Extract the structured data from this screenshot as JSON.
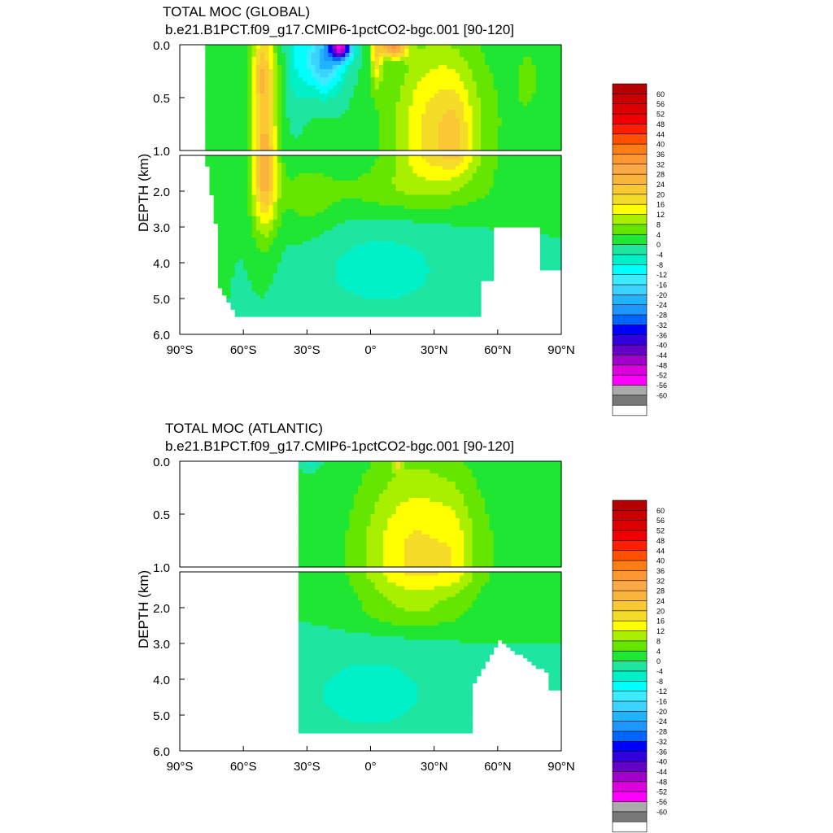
{
  "chart_data": [
    {
      "type": "contour",
      "title": "TOTAL MOC (GLOBAL)",
      "subtitle": "b.e21.B1PCT.f09_g17.CMIP6-1pctCO2-bgc.001 [90-120]",
      "ylabel": "DEPTH (km)",
      "xlabel": "",
      "xlim": [
        -90,
        90
      ],
      "ylim": [
        6.0,
        0.0
      ],
      "y_split_km": 1.0,
      "x_ticks": [
        "90°S",
        "60°S",
        "30°S",
        "0°",
        "30°N",
        "60°N",
        "90°N"
      ],
      "y_ticks_upper": [
        "0.0",
        "0.5",
        "1.0"
      ],
      "y_ticks_lower": [
        "2.0",
        "3.0",
        "4.0",
        "5.0",
        "6.0"
      ],
      "features": [
        {
          "name": "Southern Ocean overturning cell",
          "lat_center": -50,
          "depth_range_km": [
            0.0,
            3.2
          ],
          "peak_sv": 28,
          "sign": "positive"
        },
        {
          "name": "Tropical surface cell (south)",
          "lat_center": -13,
          "depth_range_km": [
            0.0,
            0.4
          ],
          "peak_sv": -44,
          "sign": "negative"
        },
        {
          "name": "Tropical surface cell (north)",
          "lat_center": 10,
          "depth_range_km": [
            0.0,
            0.2
          ],
          "peak_sv": 32,
          "sign": "positive"
        },
        {
          "name": "NH upper overturning cell",
          "lat_center": 40,
          "depth_range_km": [
            0.3,
            1.8
          ],
          "peak_sv": 20,
          "sign": "positive"
        },
        {
          "name": "Abyssal cell",
          "lat_center": 10,
          "depth_range_km": [
            3.0,
            5.5
          ],
          "peak_sv": -4,
          "sign": "negative"
        }
      ]
    },
    {
      "type": "contour",
      "title": "TOTAL MOC (ATLANTIC)",
      "subtitle": "b.e21.B1PCT.f09_g17.CMIP6-1pctCO2-bgc.001 [90-120]",
      "ylabel": "DEPTH (km)",
      "xlabel": "",
      "xlim": [
        -90,
        90
      ],
      "ylim": [
        6.0,
        0.0
      ],
      "y_split_km": 1.0,
      "x_ticks": [
        "90°S",
        "60°S",
        "30°S",
        "0°",
        "30°N",
        "60°N",
        "90°N"
      ],
      "y_ticks_upper": [
        "0.0",
        "0.5",
        "1.0"
      ],
      "y_ticks_lower": [
        "2.0",
        "3.0",
        "4.0",
        "5.0",
        "6.0"
      ],
      "features": [
        {
          "name": "AMOC upper cell",
          "lat_center": 20,
          "depth_range_km": [
            0.1,
            2.2
          ],
          "peak_sv": 20,
          "sign": "positive"
        },
        {
          "name": "Subtropical surface cell",
          "lat_center": -25,
          "depth_range_km": [
            0.0,
            0.05
          ],
          "peak_sv": -4,
          "sign": "negative"
        },
        {
          "name": "Antarctic Bottom Water cell",
          "lat_center": 0,
          "depth_range_km": [
            3.0,
            5.4
          ],
          "peak_sv": -4,
          "sign": "negative"
        }
      ]
    }
  ],
  "colorbar": {
    "labels": [
      "60",
      "56",
      "52",
      "48",
      "44",
      "40",
      "36",
      "32",
      "28",
      "24",
      "20",
      "16",
      "12",
      "8",
      "4",
      "0",
      "-4",
      "-8",
      "-12",
      "-16",
      "-20",
      "-24",
      "-28",
      "-32",
      "-36",
      "-40",
      "-44",
      "-48",
      "-52",
      "-56",
      "-60"
    ],
    "colors": [
      "#b40000",
      "#c80000",
      "#dc0000",
      "#f00000",
      "#ff1e00",
      "#ff5000",
      "#ff7d14",
      "#ff9632",
      "#faa946",
      "#fab43c",
      "#fac832",
      "#f5dc28",
      "#ffff00",
      "#a8f000",
      "#64e600",
      "#1ee632",
      "#1ee6a0",
      "#00f0c8",
      "#00ffff",
      "#3cebff",
      "#3cd2ff",
      "#1eb4ff",
      "#1e96ff",
      "#0064ff",
      "#0000ff",
      "#3200dc",
      "#6400c8",
      "#a000c8",
      "#dc00dc",
      "#ff00ff",
      "#aaaaaa",
      "#787878",
      "#ffffff"
    ]
  }
}
